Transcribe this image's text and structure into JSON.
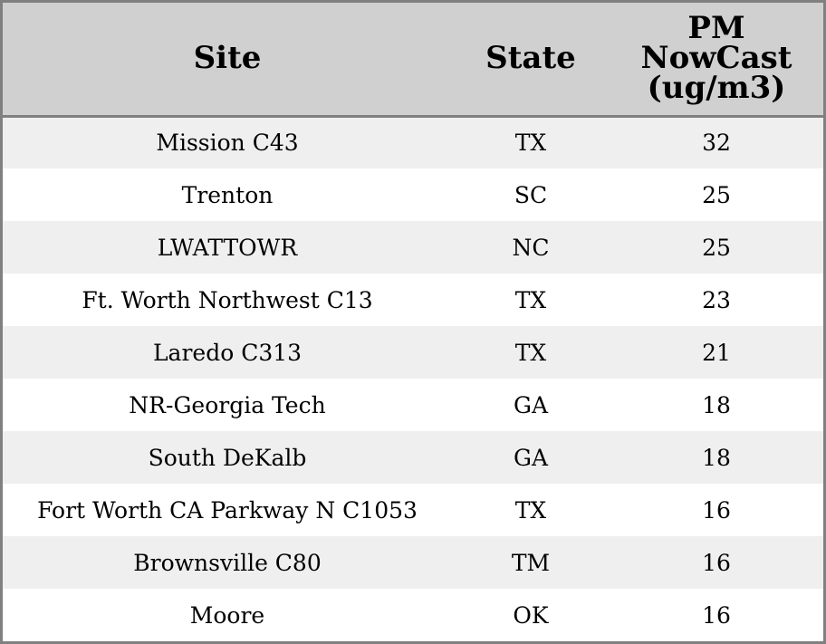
{
  "chart_data": {
    "type": "table",
    "columns": [
      "Site",
      "State",
      "PM NowCast (ug/m3)"
    ],
    "header_lines": {
      "site": "Site",
      "state": "State",
      "pm": [
        "PM",
        "NowCast",
        "(ug/m3)"
      ]
    },
    "rows": [
      {
        "site": "Mission C43",
        "state": "TX",
        "pm": 32
      },
      {
        "site": "Trenton",
        "state": "SC",
        "pm": 25
      },
      {
        "site": "LWATTOWR",
        "state": "NC",
        "pm": 25
      },
      {
        "site": "Ft. Worth Northwest C13",
        "state": "TX",
        "pm": 23
      },
      {
        "site": "Laredo C313",
        "state": "TX",
        "pm": 21
      },
      {
        "site": "NR-Georgia Tech",
        "state": "GA",
        "pm": 18
      },
      {
        "site": "South DeKalb",
        "state": "GA",
        "pm": 18
      },
      {
        "site": "Fort Worth CA Parkway N C1053",
        "state": "TX",
        "pm": 16
      },
      {
        "site": "Brownsville C80",
        "state": "TM",
        "pm": 16
      },
      {
        "site": "Moore",
        "state": "OK",
        "pm": 16
      }
    ],
    "colors": {
      "header_bg": "#d0d0d0",
      "row_alt_bg": "#efefef",
      "row_bg": "#ffffff",
      "border": "#808080"
    }
  }
}
